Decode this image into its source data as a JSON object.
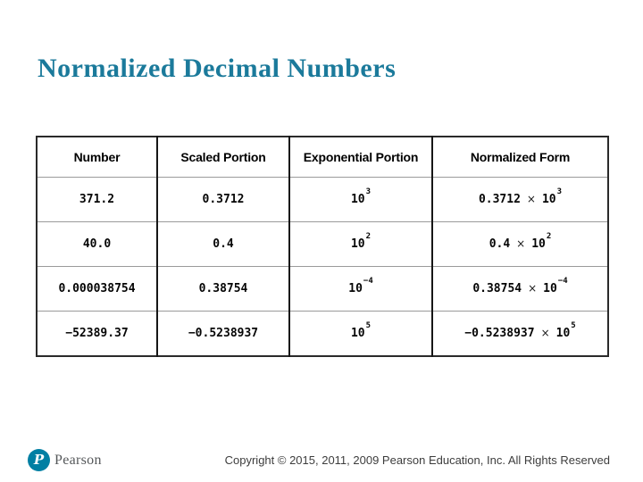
{
  "slide": {
    "title": "Normalized Decimal Numbers",
    "title_color": "#1b7a9b"
  },
  "table": {
    "headers": [
      "Number",
      "Scaled Portion",
      "Exponential Portion",
      "Normalized Form"
    ],
    "multiply_sign": "×",
    "rows": [
      {
        "number": "371.2",
        "scaled": "0.3712",
        "exp_base": "10",
        "exp_sup": "3",
        "norm_mantissa": "0.3712",
        "norm_base": "10",
        "norm_sup": "3"
      },
      {
        "number": "40.0",
        "scaled": "0.4",
        "exp_base": "10",
        "exp_sup": "2",
        "norm_mantissa": "0.4",
        "norm_base": "10",
        "norm_sup": "2"
      },
      {
        "number": "0.000038754",
        "scaled": "0.38754",
        "exp_base": "10",
        "exp_sup": "−4",
        "norm_mantissa": "0.38754",
        "norm_base": "10",
        "norm_sup": "−4"
      },
      {
        "number": "−52389.37",
        "scaled": "−0.5238937",
        "exp_base": "10",
        "exp_sup": "5",
        "norm_mantissa": "−0.5238937",
        "norm_base": "10",
        "norm_sup": "5"
      }
    ]
  },
  "footer": {
    "logo_letter": "P",
    "logo_color": "#007fa3",
    "logo_wordmark": "Pearson",
    "copyright": "Copyright © 2015, 2011, 2009 Pearson Education, Inc. All Rights Reserved"
  }
}
